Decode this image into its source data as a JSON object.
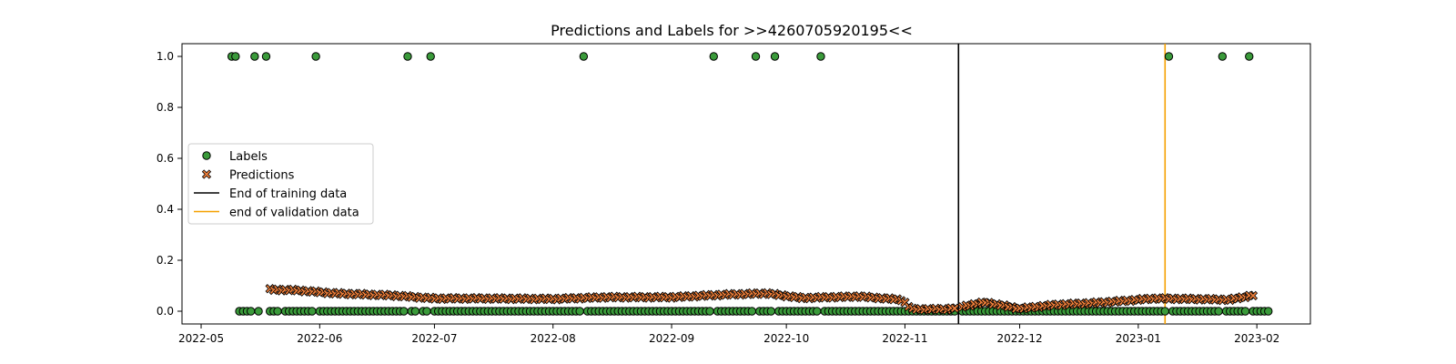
{
  "chart_data": {
    "type": "scatter",
    "title": "Predictions and Labels for >>4260705920195<<",
    "xlabel": "",
    "ylabel": "",
    "xlim": [
      "2022-04-26",
      "2023-02-15"
    ],
    "ylim": [
      -0.05,
      1.05
    ],
    "x_ticks": [
      "2022-05",
      "2022-06",
      "2022-07",
      "2022-08",
      "2022-09",
      "2022-10",
      "2022-11",
      "2022-12",
      "2023-01",
      "2023-02"
    ],
    "y_ticks": [
      0.0,
      0.2,
      0.4,
      0.6,
      0.8,
      1.0
    ],
    "y_tick_labels": [
      "0.0",
      "0.2",
      "0.4",
      "0.6",
      "0.8",
      "1.0"
    ],
    "grid": false,
    "legend_position": "center-left",
    "series": [
      {
        "name": "Labels",
        "kind": "scatter",
        "marker": "circle",
        "color": "#3a9a3a",
        "edge_color": "#000000",
        "range_start": "2022-05-09",
        "range_end": "2023-02-04",
        "missing_dates": [
          "2022-05-17",
          "2022-05-22",
          "2022-06-27",
          "2022-11-15"
        ],
        "positive_dates": [
          "2022-05-09",
          "2022-05-10",
          "2022-05-15",
          "2022-05-18",
          "2022-05-31",
          "2022-06-24",
          "2022-06-30",
          "2022-08-09",
          "2022-09-12",
          "2022-09-23",
          "2022-09-28",
          "2022-10-10",
          "2023-01-09",
          "2023-01-23",
          "2023-01-30"
        ]
      },
      {
        "name": "Predictions",
        "kind": "scatter",
        "marker": "x",
        "color": "#ef7f3a",
        "edge_color": "#000000",
        "range_start": "2022-05-19",
        "range_end": "2023-01-31",
        "missing_dates": [
          "2022-11-15"
        ],
        "anchors": [
          [
            "2022-05-19",
            0.085
          ],
          [
            "2022-05-26",
            0.082
          ],
          [
            "2022-06-05",
            0.07
          ],
          [
            "2022-06-20",
            0.062
          ],
          [
            "2022-07-01",
            0.05
          ],
          [
            "2022-07-15",
            0.05
          ],
          [
            "2022-08-01",
            0.048
          ],
          [
            "2022-08-15",
            0.055
          ],
          [
            "2022-09-01",
            0.055
          ],
          [
            "2022-09-15",
            0.065
          ],
          [
            "2022-09-26",
            0.07
          ],
          [
            "2022-10-05",
            0.052
          ],
          [
            "2022-10-20",
            0.058
          ],
          [
            "2022-10-31",
            0.045
          ],
          [
            "2022-11-03",
            0.008
          ],
          [
            "2022-11-12",
            0.008
          ],
          [
            "2022-11-22",
            0.035
          ],
          [
            "2022-12-01",
            0.01
          ],
          [
            "2022-12-10",
            0.025
          ],
          [
            "2022-12-20",
            0.032
          ],
          [
            "2022-12-28",
            0.04
          ],
          [
            "2023-01-05",
            0.05
          ],
          [
            "2023-01-15",
            0.048
          ],
          [
            "2023-01-25",
            0.045
          ],
          [
            "2023-01-31",
            0.063
          ]
        ]
      }
    ],
    "vertical_lines": [
      {
        "name": "End of training data",
        "x": "2022-11-15",
        "color": "#000000"
      },
      {
        "name": "end of validation data",
        "x": "2023-01-08",
        "color": "#f5a000"
      }
    ],
    "legend": [
      "Labels",
      "Predictions",
      "End of training data",
      "end of validation data"
    ]
  }
}
